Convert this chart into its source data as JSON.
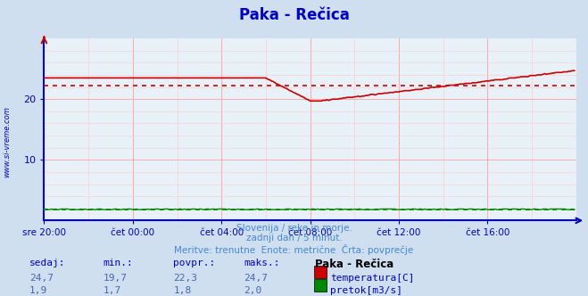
{
  "title": "Paka - Rečica",
  "title_color": "#0000cc",
  "bg_color": "#d0dff0",
  "plot_bg_color": "#e8f0f8",
  "grid_color_major": "#ffaaaa",
  "grid_color_minor": "#ffcccc",
  "ylim": [
    0,
    30
  ],
  "yticks": [
    10,
    20
  ],
  "xtick_labels": [
    "sre 20:00",
    "čet 00:00",
    "čet 04:00",
    "čet 08:00",
    "čet 12:00",
    "čet 16:00"
  ],
  "avg_temp": 22.3,
  "avg_flow": 1.8,
  "temp_color": "#cc0000",
  "flow_color": "#008800",
  "axis_color": "#0000bb",
  "watermark": "www.si-vreme.com",
  "footer_line1": "Slovenija / reke in morje.",
  "footer_line2": "zadnji dan / 5 minut.",
  "footer_line3": "Meritve: trenutne  Enote: metrične  Črta: povprečje",
  "footer_color": "#4488cc",
  "table_label_color": "#0000cc",
  "table_value_color": "#4466aa",
  "legend_temp_color": "#cc0000",
  "legend_flow_color": "#008800",
  "sedaj_temp": 24.7,
  "min_temp": 19.7,
  "povpr_temp": 22.3,
  "maks_temp": 24.7,
  "sedaj_flow": 1.9,
  "min_flow": 1.7,
  "povpr_flow": 1.8,
  "maks_flow": 2.0,
  "n_points": 288
}
